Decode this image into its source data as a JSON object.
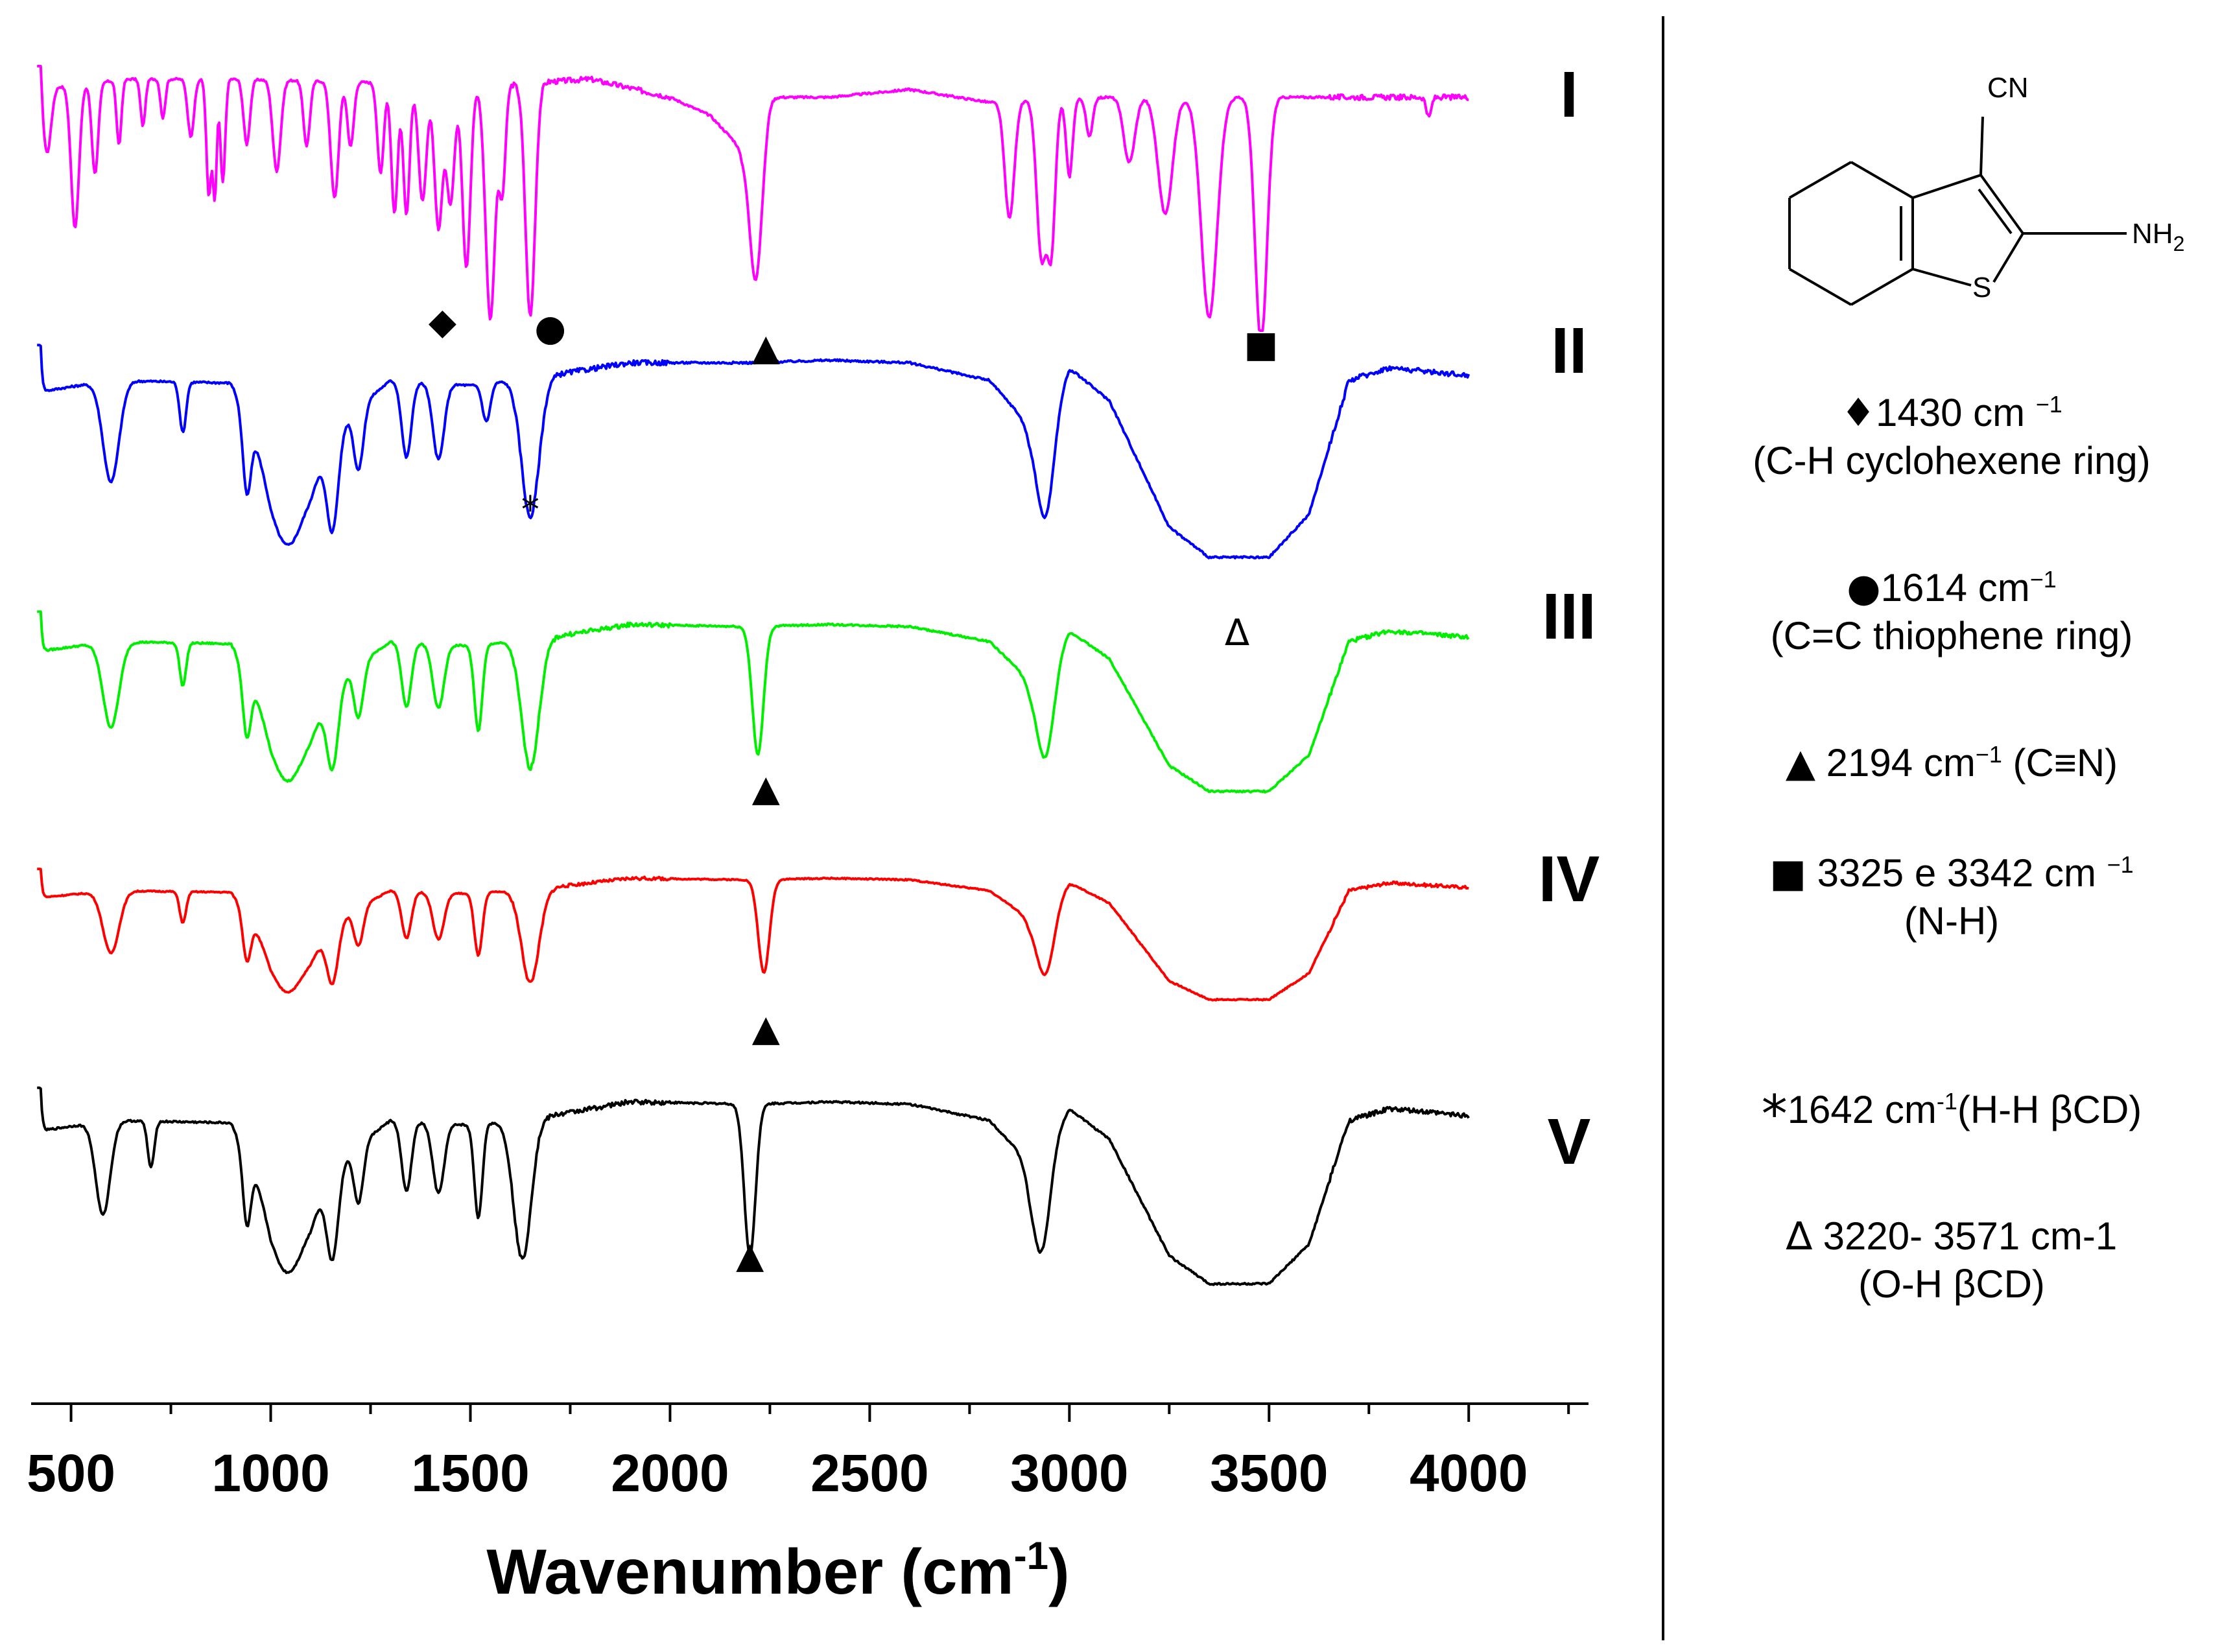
{
  "chart_data": {
    "type": "line",
    "title": "",
    "xlabel": "Wavenumber (cm-1)",
    "xlabel_main": "Wavenumber (cm",
    "xlabel_sup": "-1",
    "xlabel_close": ")",
    "ylabel": "",
    "xlim": [
      400,
      4300
    ],
    "x_ticks": [
      500,
      1000,
      1500,
      2000,
      2500,
      3000,
      3500,
      4000
    ],
    "tick_labels": [
      "500",
      "1000",
      "1500",
      "2000",
      "2500",
      "3000",
      "3500",
      "4000"
    ],
    "series": [
      {
        "name": "I",
        "color": "#ff00ff",
        "offset": 0.0,
        "baseline": [
          [
            400,
            0.93
          ],
          [
            650,
            0.97
          ],
          [
            900,
            0.97
          ],
          [
            1200,
            0.96
          ],
          [
            1500,
            0.94
          ],
          [
            1800,
            0.97
          ],
          [
            2000,
            0.9
          ],
          [
            2100,
            0.83
          ],
          [
            2180,
            0.7
          ],
          [
            2250,
            0.9
          ],
          [
            2400,
            0.9
          ],
          [
            2600,
            0.93
          ],
          [
            2800,
            0.88
          ],
          [
            3100,
            0.9
          ],
          [
            3500,
            0.9
          ],
          [
            3700,
            0.9
          ],
          [
            4000,
            0.9
          ]
        ],
        "bands": [
          [
            410,
            8,
            -0.85
          ],
          [
            440,
            10,
            0.25
          ],
          [
            510,
            10,
            0.55
          ],
          [
            560,
            8,
            0.35
          ],
          [
            620,
            6,
            0.25
          ],
          [
            680,
            6,
            0.18
          ],
          [
            730,
            6,
            0.15
          ],
          [
            800,
            8,
            0.22
          ],
          [
            845,
            6,
            0.45
          ],
          [
            860,
            5,
            0.45
          ],
          [
            880,
            6,
            0.4
          ],
          [
            940,
            8,
            0.25
          ],
          [
            1015,
            10,
            0.35
          ],
          [
            1090,
            8,
            0.25
          ],
          [
            1160,
            10,
            0.45
          ],
          [
            1200,
            8,
            0.25
          ],
          [
            1275,
            8,
            0.35
          ],
          [
            1310,
            8,
            0.5
          ],
          [
            1340,
            8,
            0.5
          ],
          [
            1380,
            10,
            0.45
          ],
          [
            1420,
            10,
            0.55
          ],
          [
            1450,
            10,
            0.45
          ],
          [
            1490,
            10,
            0.7
          ],
          [
            1550,
            12,
            0.9
          ],
          [
            1580,
            8,
            0.4
          ],
          [
            1650,
            12,
            0.9
          ],
          [
            2215,
            16,
            0.6
          ],
          [
            2850,
            12,
            0.45
          ],
          [
            2930,
            12,
            0.6
          ],
          [
            2955,
            10,
            0.55
          ],
          [
            3000,
            8,
            0.3
          ],
          [
            3050,
            8,
            0.15
          ],
          [
            3150,
            14,
            0.25
          ],
          [
            3240,
            18,
            0.45
          ],
          [
            3350,
            20,
            0.85
          ],
          [
            3480,
            15,
            0.95
          ],
          [
            3900,
            6,
            0.08
          ]
        ],
        "markers": [
          {
            "x": 1430,
            "symbol": "◆"
          },
          {
            "x": 1700,
            "symbol": "●"
          },
          {
            "x": 2240,
            "symbol": "▲"
          },
          {
            "x": 3480,
            "symbol": "■"
          }
        ]
      },
      {
        "name": "II",
        "color": "#0000ff",
        "offset": 0.0,
        "baseline": [
          [
            400,
            0.83
          ],
          [
            600,
            0.88
          ],
          [
            900,
            0.87
          ],
          [
            1000,
            0.55
          ],
          [
            1100,
            0.5
          ],
          [
            1200,
            0.75
          ],
          [
            1300,
            0.88
          ],
          [
            1500,
            0.86
          ],
          [
            1700,
            0.9
          ],
          [
            1900,
            0.95
          ],
          [
            2200,
            0.95
          ],
          [
            2400,
            0.96
          ],
          [
            2600,
            0.95
          ],
          [
            2800,
            0.88
          ],
          [
            2900,
            0.7
          ],
          [
            3000,
            0.93
          ],
          [
            3100,
            0.8
          ],
          [
            3250,
            0.3
          ],
          [
            3350,
            0.18
          ],
          [
            3500,
            0.18
          ],
          [
            3600,
            0.35
          ],
          [
            3700,
            0.88
          ],
          [
            3800,
            0.93
          ],
          [
            4000,
            0.9
          ]
        ],
        "bands": [
          [
            410,
            8,
            -0.85
          ],
          [
            600,
            20,
            0.4
          ],
          [
            780,
            8,
            0.2
          ],
          [
            940,
            10,
            0.3
          ],
          [
            1040,
            40,
            0.3
          ],
          [
            1155,
            14,
            0.35
          ],
          [
            1220,
            12,
            0.25
          ],
          [
            1340,
            12,
            0.3
          ],
          [
            1420,
            14,
            0.3
          ],
          [
            1540,
            10,
            0.15
          ],
          [
            1650,
            22,
            0.55
          ],
          [
            2940,
            22,
            0.45
          ]
        ],
        "markers": [
          {
            "x": 1650,
            "symbol": "*"
          },
          {
            "x": 3420,
            "symbol": "Δ"
          }
        ]
      },
      {
        "name": "III",
        "color": "#00ee00",
        "offset": 0.0,
        "baseline": [
          [
            400,
            0.83
          ],
          [
            600,
            0.88
          ],
          [
            900,
            0.87
          ],
          [
            1000,
            0.55
          ],
          [
            1100,
            0.5
          ],
          [
            1200,
            0.75
          ],
          [
            1300,
            0.88
          ],
          [
            1500,
            0.86
          ],
          [
            1700,
            0.9
          ],
          [
            1900,
            0.96
          ],
          [
            2200,
            0.95
          ],
          [
            2400,
            0.96
          ],
          [
            2600,
            0.95
          ],
          [
            2800,
            0.88
          ],
          [
            2900,
            0.7
          ],
          [
            3000,
            0.93
          ],
          [
            3100,
            0.8
          ],
          [
            3250,
            0.3
          ],
          [
            3350,
            0.18
          ],
          [
            3500,
            0.18
          ],
          [
            3600,
            0.35
          ],
          [
            3700,
            0.88
          ],
          [
            3800,
            0.93
          ],
          [
            4000,
            0.9
          ]
        ],
        "bands": [
          [
            410,
            8,
            -0.85
          ],
          [
            600,
            20,
            0.4
          ],
          [
            780,
            8,
            0.2
          ],
          [
            940,
            10,
            0.3
          ],
          [
            1040,
            40,
            0.3
          ],
          [
            1155,
            14,
            0.35
          ],
          [
            1220,
            12,
            0.25
          ],
          [
            1340,
            12,
            0.3
          ],
          [
            1420,
            14,
            0.3
          ],
          [
            1520,
            10,
            0.4
          ],
          [
            1650,
            22,
            0.6
          ],
          [
            2220,
            14,
            0.6
          ],
          [
            2940,
            22,
            0.45
          ]
        ],
        "markers": [
          {
            "x": 2240,
            "symbol": "▲"
          }
        ]
      },
      {
        "name": "IV",
        "color": "#ff0000",
        "offset": 0.0,
        "baseline": [
          [
            400,
            0.83
          ],
          [
            600,
            0.88
          ],
          [
            900,
            0.87
          ],
          [
            1000,
            0.55
          ],
          [
            1100,
            0.5
          ],
          [
            1200,
            0.75
          ],
          [
            1300,
            0.88
          ],
          [
            1500,
            0.86
          ],
          [
            1700,
            0.9
          ],
          [
            1900,
            0.96
          ],
          [
            2200,
            0.95
          ],
          [
            2400,
            0.96
          ],
          [
            2600,
            0.95
          ],
          [
            2800,
            0.88
          ],
          [
            2900,
            0.7
          ],
          [
            3000,
            0.93
          ],
          [
            3100,
            0.8
          ],
          [
            3250,
            0.3
          ],
          [
            3350,
            0.18
          ],
          [
            3500,
            0.18
          ],
          [
            3600,
            0.35
          ],
          [
            3700,
            0.88
          ],
          [
            3800,
            0.93
          ],
          [
            4000,
            0.9
          ]
        ],
        "bands": [
          [
            410,
            8,
            -0.85
          ],
          [
            600,
            20,
            0.4
          ],
          [
            780,
            8,
            0.2
          ],
          [
            940,
            10,
            0.3
          ],
          [
            1040,
            40,
            0.3
          ],
          [
            1155,
            14,
            0.35
          ],
          [
            1220,
            12,
            0.25
          ],
          [
            1340,
            12,
            0.3
          ],
          [
            1420,
            14,
            0.3
          ],
          [
            1520,
            10,
            0.4
          ],
          [
            1650,
            22,
            0.6
          ],
          [
            2235,
            14,
            0.6
          ],
          [
            2940,
            22,
            0.45
          ]
        ],
        "markers": [
          {
            "x": 2240,
            "symbol": "▲"
          }
        ]
      },
      {
        "name": "V",
        "color": "#000000",
        "offset": 0.0,
        "baseline": [
          [
            400,
            0.83
          ],
          [
            600,
            0.88
          ],
          [
            900,
            0.87
          ],
          [
            1000,
            0.55
          ],
          [
            1100,
            0.5
          ],
          [
            1200,
            0.75
          ],
          [
            1300,
            0.88
          ],
          [
            1500,
            0.86
          ],
          [
            1700,
            0.9
          ],
          [
            1900,
            0.96
          ],
          [
            2200,
            0.95
          ],
          [
            2400,
            0.96
          ],
          [
            2600,
            0.95
          ],
          [
            2800,
            0.88
          ],
          [
            2900,
            0.7
          ],
          [
            3000,
            0.93
          ],
          [
            3100,
            0.8
          ],
          [
            3250,
            0.3
          ],
          [
            3350,
            0.18
          ],
          [
            3500,
            0.18
          ],
          [
            3600,
            0.35
          ],
          [
            3700,
            0.88
          ],
          [
            3800,
            0.93
          ],
          [
            4000,
            0.9
          ]
        ],
        "bands": [
          [
            410,
            8,
            -0.85
          ],
          [
            580,
            18,
            0.4
          ],
          [
            700,
            8,
            0.2
          ],
          [
            940,
            10,
            0.3
          ],
          [
            1040,
            40,
            0.3
          ],
          [
            1155,
            14,
            0.35
          ],
          [
            1220,
            12,
            0.25
          ],
          [
            1340,
            12,
            0.3
          ],
          [
            1420,
            14,
            0.3
          ],
          [
            1520,
            10,
            0.4
          ],
          [
            1630,
            22,
            0.6
          ],
          [
            2200,
            14,
            0.65
          ],
          [
            2930,
            22,
            0.45
          ]
        ],
        "markers": [
          {
            "x": 2200,
            "symbol": "▲"
          }
        ]
      }
    ]
  },
  "legend": [
    {
      "symbol": "♦",
      "text": "1430 cm ",
      "sup": "−1",
      "second": "(C-H  cyclohexene  ring)"
    },
    {
      "symbol": "●",
      "text": "1614 cm",
      "sup": "−1",
      "second": "(C=C  thiophene  ring)"
    },
    {
      "symbol": "▲",
      "text": " 2194 cm",
      "sup": "−1",
      "tail": " (C≡N)",
      "second": ""
    },
    {
      "symbol": "■",
      "text": " 3325 e 3342 cm ",
      "sup": "−1",
      "second": "(N-H)"
    },
    {
      "symbol": "*",
      "text": "1642 cm",
      "sup": "-1",
      "tail": "(H-H  βCD)",
      "second": ""
    },
    {
      "symbol": "∆",
      "text": " 3220- 3571 cm-1",
      "sup": "",
      "second": "(O-H  βCD)"
    }
  ],
  "molecule": {
    "name": "2-amino-4,5,6,7-tetrahydro-1-benzothiophene-3-carbonitrile",
    "labels": {
      "cn": "CN",
      "nh2": "NH",
      "nh2_sub": "2",
      "s": "S"
    }
  }
}
